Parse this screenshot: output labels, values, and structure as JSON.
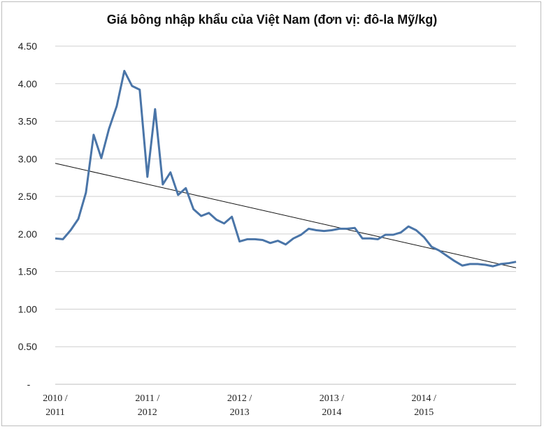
{
  "chart_data": {
    "type": "line",
    "title": "Giá bông nhập khẩu của Việt Nam (đơn vị: đô-la Mỹ/kg)",
    "xlabel": "",
    "ylabel": "",
    "ylim": [
      0,
      4.5
    ],
    "y_ticks": [
      {
        "value": 0,
        "label": "-"
      },
      {
        "value": 0.5,
        "label": "0.50"
      },
      {
        "value": 1.0,
        "label": "1.00"
      },
      {
        "value": 1.5,
        "label": "1.50"
      },
      {
        "value": 2.0,
        "label": "2.00"
      },
      {
        "value": 2.5,
        "label": "2.50"
      },
      {
        "value": 3.0,
        "label": "3.00"
      },
      {
        "value": 3.5,
        "label": "3.50"
      },
      {
        "value": 4.0,
        "label": "4.00"
      },
      {
        "value": 4.5,
        "label": "4.50"
      }
    ],
    "x_ticks": [
      {
        "index": 0,
        "line1": "2010 /",
        "line2": "2011"
      },
      {
        "index": 12,
        "line1": "2011 /",
        "line2": "2012"
      },
      {
        "index": 24,
        "line1": "2012 /",
        "line2": "2013"
      },
      {
        "index": 36,
        "line1": "2013 /",
        "line2": "2014"
      },
      {
        "index": 48,
        "line1": "2014 /",
        "line2": "2015"
      }
    ],
    "grid": true,
    "legend": "none",
    "series": [
      {
        "values": [
          1.94,
          1.93,
          2.05,
          2.2,
          2.55,
          3.32,
          3.01,
          3.4,
          3.7,
          4.17,
          3.97,
          3.92,
          2.76,
          3.66,
          2.66,
          2.82,
          2.52,
          2.61,
          2.33,
          2.24,
          2.28,
          2.19,
          2.14,
          2.23,
          1.9,
          1.93,
          1.93,
          1.92,
          1.88,
          1.91,
          1.86,
          1.94,
          1.99,
          2.07,
          2.05,
          2.04,
          2.05,
          2.07,
          2.07,
          2.08,
          1.94,
          1.94,
          1.93,
          1.99,
          1.99,
          2.02,
          2.1,
          2.05,
          1.96,
          1.83,
          1.78,
          1.71,
          1.64,
          1.58,
          1.6,
          1.6,
          1.59,
          1.57,
          1.6,
          1.61,
          1.63
        ],
        "color": "#4a75a8"
      }
    ],
    "trendline": {
      "start": 2.94,
      "end": 1.55,
      "color": "#111111"
    }
  }
}
